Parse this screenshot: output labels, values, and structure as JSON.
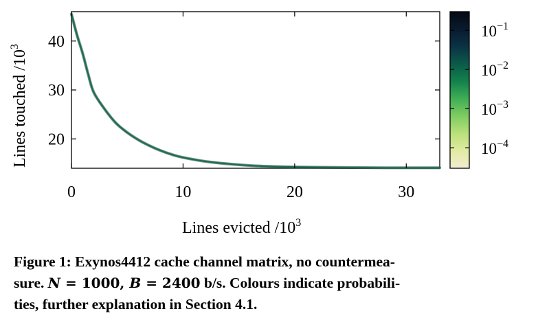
{
  "chart_data": {
    "type": "heatmap",
    "xlabel": "Lines evicted /10",
    "xlabel_exp": "3",
    "ylabel": "Lines touched /10",
    "ylabel_exp": "3",
    "xlim": [
      0,
      33
    ],
    "ylim": [
      14,
      46
    ],
    "x_ticks": [
      0,
      10,
      20,
      30
    ],
    "y_ticks": [
      20,
      30,
      40
    ],
    "colorbar": {
      "scale": "log",
      "range": [
        3e-05,
        0.3
      ],
      "ticks": [
        {
          "base": "10",
          "exp": "−1",
          "value": 0.1
        },
        {
          "base": "10",
          "exp": "−2",
          "value": 0.01
        },
        {
          "base": "10",
          "exp": "−3",
          "value": 0.001
        },
        {
          "base": "10",
          "exp": "−4",
          "value": 0.0001
        }
      ],
      "colors": [
        "#f3ecd2",
        "#e1eba3",
        "#b9e07a",
        "#7fcc62",
        "#3fae55",
        "#13814c",
        "#0b5a49",
        "#0b3244",
        "#091a2e",
        "#050a14"
      ]
    },
    "curve": {
      "x": [
        0,
        0.5,
        1,
        1.5,
        2,
        3,
        4,
        5,
        6,
        7,
        8,
        9,
        10,
        12,
        14,
        16,
        18,
        20,
        22,
        25,
        28,
        31,
        33
      ],
      "y": [
        45.5,
        41.2,
        37.5,
        33.2,
        29.5,
        26.0,
        23.2,
        21.3,
        19.8,
        18.6,
        17.6,
        16.8,
        16.2,
        15.4,
        14.9,
        14.55,
        14.35,
        14.25,
        14.2,
        14.15,
        14.1,
        14.1,
        14.1
      ],
      "probability": 0.005,
      "color": "#1a6e4e"
    },
    "grid": false
  },
  "caption": {
    "line1_a": "Figure 1:  Exynos4412 cache channel matrix, no countermea-",
    "line2_a": "sure. ",
    "N_symbol": "N",
    "eq1": " = 1000, ",
    "B_symbol": "B",
    "eq2": " = 2400",
    "line2_b": " b/s. Colours indicate probabili-",
    "line3": "ties, further explanation in Section 4.1."
  }
}
